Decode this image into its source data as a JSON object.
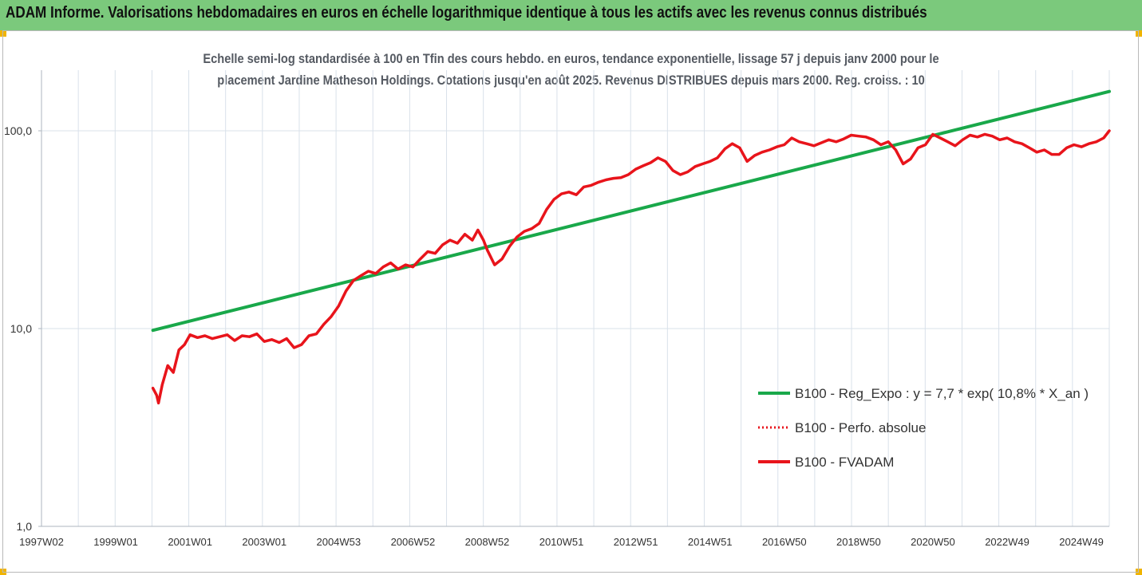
{
  "banner": {
    "title": "ADAM Informe. Valorisations hebdomadaires en euros en échelle logarithmique identique à tous les actifs avec les revenus connus distribués"
  },
  "colors": {
    "banner_bg": "#7bc97c",
    "corner_marker": "#f0b400",
    "regression": "#19a84a",
    "fvadam": "#e8141b",
    "perfo": "#e8141b",
    "grid": "#d9e1ea",
    "axis": "#aeb6bf"
  },
  "chart_data": {
    "type": "line",
    "title_lines": [
      "Echelle semi-log standardisée à 100 en Tfin des cours hebdo. en euros, tendance exponentielle, lissage 57 j depuis janv 2000 pour le",
      "placement Jardine Matheson Holdings. Cotations jusqu'en août 2025.  Revenus DISTRIBUES depuis mars 2000. Reg. croiss. : 10"
    ],
    "y_scale": "log",
    "ylim": [
      1,
      200
    ],
    "y_ticks": [
      "1,0",
      "10,0",
      "100,0"
    ],
    "y_tick_values": [
      1,
      10,
      100
    ],
    "x_range": [
      1997.0,
      2025.75
    ],
    "x_ticks": [
      "1997W02",
      "1999W01",
      "2001W01",
      "2003W01",
      "2004W53",
      "2006W52",
      "2008W52",
      "2010W51",
      "2012W51",
      "2014W51",
      "2016W50",
      "2018W50",
      "2020W50",
      "2022W49",
      "2024W49"
    ],
    "x_tick_years": [
      1997.0,
      1999.0,
      2001.0,
      2003.0,
      2005.0,
      2007.0,
      2009.0,
      2011.0,
      2013.0,
      2015.0,
      2017.0,
      2019.0,
      2021.0,
      2023.0,
      2025.0
    ],
    "grid": "vertical",
    "legend_position": "right",
    "series": [
      {
        "name": "B100 - Reg_Expo : y = 7,7 * exp( 10,8% *  X_an )",
        "style": "solid-green",
        "x": [
          2000.0,
          2025.75
        ],
        "y": [
          9.8,
          158
        ]
      },
      {
        "name": "B100 - Perfo. absolue",
        "style": "dotted-red",
        "x": [],
        "y": []
      },
      {
        "name": "B100 - FVADAM",
        "style": "solid-red",
        "x": [
          2000.0,
          2000.1,
          2000.15,
          2000.25,
          2000.4,
          2000.55,
          2000.7,
          2000.85,
          2001.0,
          2001.2,
          2001.4,
          2001.6,
          2001.8,
          2002.0,
          2002.2,
          2002.4,
          2002.6,
          2002.8,
          2003.0,
          2003.2,
          2003.4,
          2003.6,
          2003.8,
          2004.0,
          2004.2,
          2004.4,
          2004.6,
          2004.8,
          2005.0,
          2005.2,
          2005.4,
          2005.6,
          2005.8,
          2006.0,
          2006.2,
          2006.4,
          2006.6,
          2006.8,
          2007.0,
          2007.2,
          2007.4,
          2007.6,
          2007.8,
          2008.0,
          2008.2,
          2008.4,
          2008.6,
          2008.75,
          2008.9,
          2009.0,
          2009.2,
          2009.4,
          2009.6,
          2009.8,
          2010.0,
          2010.2,
          2010.4,
          2010.6,
          2010.8,
          2011.0,
          2011.2,
          2011.4,
          2011.6,
          2011.8,
          2012.0,
          2012.2,
          2012.4,
          2012.6,
          2012.8,
          2013.0,
          2013.2,
          2013.4,
          2013.6,
          2013.8,
          2014.0,
          2014.2,
          2014.4,
          2014.6,
          2014.8,
          2015.0,
          2015.2,
          2015.4,
          2015.6,
          2015.8,
          2016.0,
          2016.2,
          2016.4,
          2016.6,
          2016.8,
          2017.0,
          2017.2,
          2017.4,
          2017.6,
          2017.8,
          2018.0,
          2018.2,
          2018.4,
          2018.6,
          2018.8,
          2019.0,
          2019.2,
          2019.4,
          2019.6,
          2019.8,
          2020.0,
          2020.2,
          2020.4,
          2020.6,
          2020.8,
          2021.0,
          2021.2,
          2021.4,
          2021.6,
          2021.8,
          2022.0,
          2022.2,
          2022.4,
          2022.6,
          2022.8,
          2023.0,
          2023.2,
          2023.4,
          2023.6,
          2023.8,
          2024.0,
          2024.2,
          2024.4,
          2024.6,
          2024.8,
          2025.0,
          2025.2,
          2025.4,
          2025.6,
          2025.75
        ],
        "y": [
          5.0,
          4.6,
          4.2,
          5.2,
          6.5,
          6.0,
          7.8,
          8.3,
          9.3,
          9.0,
          9.2,
          8.9,
          9.1,
          9.3,
          8.7,
          9.2,
          9.1,
          9.4,
          8.6,
          8.8,
          8.5,
          8.9,
          8.0,
          8.3,
          9.2,
          9.4,
          10.5,
          11.5,
          13.0,
          15.5,
          17.5,
          18.5,
          19.5,
          19.0,
          20.5,
          21.5,
          20.0,
          21.0,
          20.5,
          22.5,
          24.5,
          24.0,
          26.5,
          28.0,
          27.0,
          30.0,
          28.0,
          31.5,
          28.0,
          25.0,
          21.0,
          22.5,
          26.0,
          29.0,
          31.0,
          32.0,
          34.0,
          40.0,
          45.0,
          48.0,
          49.0,
          47.5,
          52.0,
          53.0,
          55.0,
          56.5,
          57.5,
          58.0,
          60.0,
          64.0,
          66.5,
          69.0,
          73.0,
          70.0,
          63.0,
          60.0,
          62.0,
          66.0,
          68.0,
          70.0,
          73.0,
          81.0,
          86.0,
          82.0,
          70.0,
          75.0,
          78.0,
          80.0,
          83.0,
          85.0,
          92.0,
          88.0,
          86.0,
          84.0,
          87.0,
          90.0,
          88.0,
          91.0,
          95.0,
          94.0,
          93.0,
          90.0,
          85.0,
          88.0,
          80.0,
          68.0,
          72.0,
          82.0,
          85.0,
          96.0,
          92.0,
          88.0,
          84.0,
          90.0,
          95.0,
          93.0,
          96.0,
          94.0,
          90.0,
          92.0,
          88.0,
          86.0,
          82.0,
          78.0,
          80.0,
          76.0,
          76.0,
          82.0,
          85.0,
          83.0,
          86.0,
          88.0,
          92.0,
          100.0
        ]
      }
    ]
  }
}
